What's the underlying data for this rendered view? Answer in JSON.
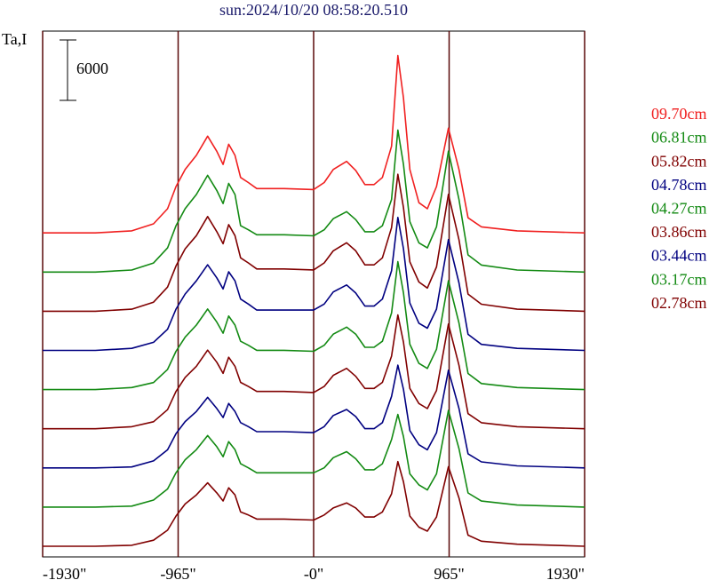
{
  "chart_data": {
    "type": "line",
    "title": "sun:2024/10/20 08:58:20.510",
    "y_label": "Ta,I",
    "scale_bar": 6000,
    "xlim": [
      -1930,
      1930
    ],
    "xticks": [
      {
        "value": -1930,
        "label": "-1930\""
      },
      {
        "value": -965,
        "label": "-965\""
      },
      {
        "value": 0,
        "label": "-0\""
      },
      {
        "value": 965,
        "label": "965\""
      },
      {
        "value": 1930,
        "label": "1930\""
      }
    ],
    "ylim": [
      0,
      52200
    ],
    "grid": true,
    "x": [
      -1930,
      -1555,
      -1295,
      -1140,
      -1040,
      -980,
      -915,
      -835,
      -755,
      -690,
      -645,
      -605,
      -560,
      -520,
      -465,
      -405,
      -210,
      0,
      75,
      140,
      235,
      300,
      365,
      430,
      490,
      555,
      600,
      640,
      685,
      750,
      810,
      875,
      960,
      1035,
      1100,
      1195,
      1450,
      1930
    ],
    "series": [
      {
        "name": "09.70cm",
        "color": "#f02020",
        "values": [
          0,
          0,
          200,
          900,
          2400,
          4600,
          6300,
          7700,
          9600,
          8100,
          6800,
          8800,
          7700,
          5500,
          5000,
          4400,
          4400,
          4300,
          5000,
          6300,
          7100,
          6200,
          4800,
          4800,
          5500,
          8600,
          17600,
          13400,
          6300,
          3000,
          2400,
          4600,
          10400,
          6300,
          1500,
          600,
          200,
          0
        ]
      },
      {
        "name": "06.81cm",
        "color": "#138a13",
        "values": [
          0,
          0,
          200,
          900,
          2400,
          4600,
          6300,
          7700,
          9600,
          8100,
          6800,
          8800,
          7700,
          4600,
          4200,
          3700,
          3700,
          3600,
          4200,
          5300,
          6000,
          5200,
          4000,
          4000,
          4600,
          7200,
          14100,
          10700,
          5000,
          2900,
          2400,
          4500,
          12000,
          7200,
          1700,
          700,
          200,
          0
        ]
      },
      {
        "name": "05.82cm",
        "color": "#800000",
        "values": [
          0,
          0,
          200,
          900,
          2400,
          4500,
          6200,
          7500,
          9400,
          7900,
          6700,
          8600,
          7500,
          5300,
          4800,
          4200,
          4200,
          4100,
          4800,
          6000,
          6800,
          6000,
          4600,
          4600,
          5300,
          8300,
          13600,
          10300,
          4900,
          2900,
          2300,
          4400,
          11600,
          7100,
          1700,
          700,
          200,
          0
        ]
      },
      {
        "name": "04.78cm",
        "color": "#000080",
        "values": [
          0,
          0,
          200,
          800,
          2100,
          4100,
          5600,
          6900,
          8500,
          7200,
          6100,
          7800,
          6900,
          5100,
          4600,
          4000,
          4000,
          4000,
          4600,
          5800,
          6500,
          5700,
          4400,
          4400,
          5100,
          7900,
          13200,
          10100,
          4700,
          2700,
          2200,
          4100,
          11000,
          6700,
          1600,
          600,
          200,
          0
        ]
      },
      {
        "name": "04.27cm",
        "color": "#138a13",
        "values": [
          0,
          0,
          200,
          700,
          2000,
          3800,
          5200,
          6400,
          8000,
          6700,
          5600,
          7300,
          6400,
          4800,
          4400,
          3900,
          3900,
          3800,
          4400,
          5500,
          6200,
          5500,
          4200,
          4200,
          4800,
          7600,
          12700,
          9600,
          4500,
          2600,
          2100,
          4000,
          10800,
          6600,
          1600,
          600,
          200,
          0
        ]
      },
      {
        "name": "03.86cm",
        "color": "#800000",
        "values": [
          0,
          0,
          200,
          700,
          1900,
          3700,
          5100,
          6200,
          7800,
          6600,
          5500,
          7100,
          6200,
          4600,
          4200,
          3700,
          3700,
          3600,
          4200,
          5300,
          6000,
          5200,
          4000,
          4000,
          4600,
          7200,
          11300,
          8600,
          4000,
          2500,
          2000,
          3800,
          10400,
          6300,
          1500,
          600,
          200,
          0
        ]
      },
      {
        "name": "03.44cm",
        "color": "#000080",
        "values": [
          0,
          0,
          100,
          700,
          1800,
          3400,
          4600,
          5600,
          7000,
          5900,
          5000,
          6400,
          5600,
          4500,
          4100,
          3600,
          3600,
          3500,
          4100,
          5200,
          5800,
          5100,
          3900,
          3900,
          4500,
          7100,
          10200,
          7800,
          3700,
          2300,
          1800,
          3500,
          9700,
          5900,
          1400,
          600,
          200,
          0
        ]
      },
      {
        "name": "03.17cm",
        "color": "#138a13",
        "values": [
          0,
          0,
          100,
          700,
          1800,
          3400,
          4700,
          5700,
          7100,
          6000,
          5000,
          6500,
          5700,
          4300,
          3900,
          3400,
          3400,
          3400,
          3900,
          4900,
          5500,
          4800,
          3700,
          3700,
          4300,
          6700,
          9200,
          7000,
          3300,
          2200,
          1700,
          3300,
          9600,
          5800,
          1400,
          600,
          200,
          0
        ]
      },
      {
        "name": "02.78cm",
        "color": "#800000",
        "values": [
          0,
          0,
          100,
          600,
          1600,
          3000,
          4200,
          5100,
          6300,
          5300,
          4500,
          5800,
          5100,
          3400,
          3100,
          2700,
          2700,
          2600,
          3100,
          3800,
          4300,
          3800,
          2900,
          2900,
          3400,
          5200,
          8400,
          6400,
          3000,
          1900,
          1500,
          2900,
          7900,
          4800,
          1100,
          500,
          200,
          0
        ]
      }
    ]
  }
}
